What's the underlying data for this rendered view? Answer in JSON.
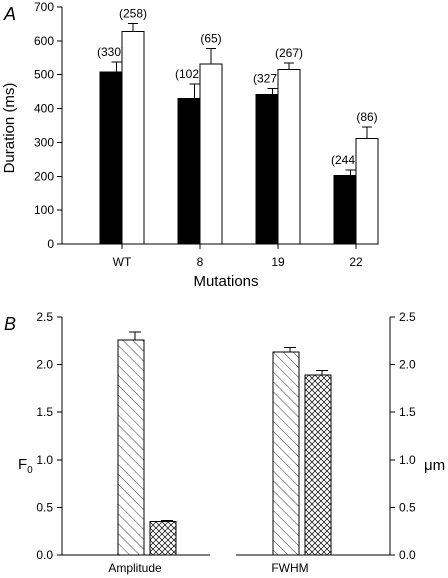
{
  "chart_data": [
    {
      "panel": "A",
      "type": "bar",
      "categories": [
        "WT",
        "8",
        "19",
        "22"
      ],
      "series": [
        {
          "fill": "solid",
          "values": [
            508,
            430,
            442,
            203
          ],
          "errors": [
            30,
            42,
            18,
            16
          ],
          "counts": [
            "(330)",
            "(102)",
            "(327)",
            "(244)"
          ]
        },
        {
          "fill": "open",
          "values": [
            627,
            531,
            515,
            311
          ],
          "errors": [
            25,
            47,
            20,
            35
          ],
          "counts": [
            "(258)",
            "(65)",
            "(267)",
            "(86)"
          ]
        }
      ],
      "xlabel": "Mutations",
      "ylabel": "Duration (ms)",
      "ylim": [
        0,
        700
      ],
      "yticks": [
        "0",
        "100",
        "200",
        "300",
        "400",
        "500",
        "600",
        "700"
      ],
      "colors": {
        "solid": "#000000",
        "open": "#ffffff"
      }
    },
    {
      "panel": "B",
      "type": "bar",
      "groups": [
        {
          "category": "Amplitude",
          "axis": "left",
          "bars": [
            {
              "pattern": "diagonal",
              "value": 2.26,
              "error": 0.08
            },
            {
              "pattern": "crosshatch",
              "value": 0.35,
              "error": 0.015
            }
          ]
        },
        {
          "category": "FWHM",
          "axis": "right",
          "bars": [
            {
              "pattern": "diagonal",
              "value": 2.13,
              "error": 0.05
            },
            {
              "pattern": "crosshatch",
              "value": 1.89,
              "error": 0.05
            }
          ]
        }
      ],
      "ylabel_left_main": "F",
      "ylabel_left_sub": "0",
      "ylabel_right": "μm",
      "ylim": [
        0,
        2.5
      ],
      "yticks": [
        "0.0",
        "0.5",
        "1.0",
        "1.5",
        "2.0",
        "2.5"
      ]
    }
  ]
}
